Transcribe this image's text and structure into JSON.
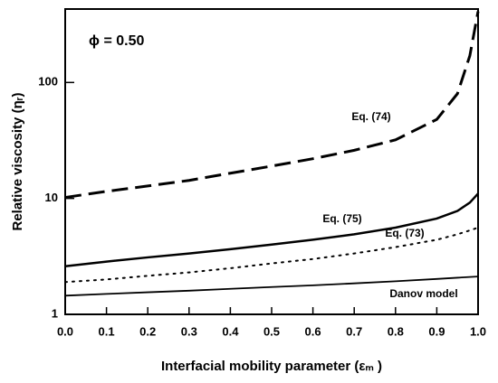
{
  "chart_data": {
    "type": "line",
    "annotation": "ϕ = 0.50",
    "xlabel": "Interfacial mobility parameter (εₘ )",
    "ylabel": "Relative viscosity (ηᵣ)",
    "xlim": [
      0,
      1
    ],
    "ylim": [
      1,
      430
    ],
    "log_y": true,
    "xticks": [
      {
        "value": 0,
        "label": "0.0"
      },
      0.1,
      0.2,
      0.3,
      0.4,
      0.5,
      0.6,
      0.7,
      0.8,
      0.9,
      {
        "value": 1,
        "label": "1.0"
      }
    ],
    "yticks": [
      1,
      10,
      100
    ],
    "x": [
      0,
      0.1,
      0.2,
      0.3,
      0.4,
      0.5,
      0.6,
      0.7,
      0.8,
      0.9,
      0.95,
      0.98,
      1
    ],
    "series": [
      {
        "name": "Eq. (74)",
        "color": "#000000",
        "style": "dashed",
        "width": 3,
        "values": [
          10.2,
          11.5,
          12.8,
          14.3,
          16.5,
          19,
          22,
          26,
          32,
          48,
          80,
          170,
          410
        ]
      },
      {
        "name": "Eq. (75)",
        "color": "#000000",
        "style": "solid",
        "width": 2.5,
        "values": [
          2.6,
          2.85,
          3.1,
          3.35,
          3.65,
          4.0,
          4.4,
          4.9,
          5.6,
          6.7,
          7.8,
          9.2,
          11
        ]
      },
      {
        "name": "Eq. (73)",
        "color": "#000000",
        "style": "dotted",
        "width": 2,
        "values": [
          1.9,
          2.0,
          2.15,
          2.3,
          2.5,
          2.75,
          3.0,
          3.35,
          3.8,
          4.4,
          4.9,
          5.3,
          5.6
        ]
      },
      {
        "name": "Danov model",
        "color": "#000000",
        "style": "solid",
        "width": 1.8,
        "values": [
          1.45,
          1.5,
          1.55,
          1.6,
          1.66,
          1.72,
          1.78,
          1.85,
          1.93,
          2.02,
          2.07,
          2.1,
          2.12
        ]
      }
    ]
  }
}
